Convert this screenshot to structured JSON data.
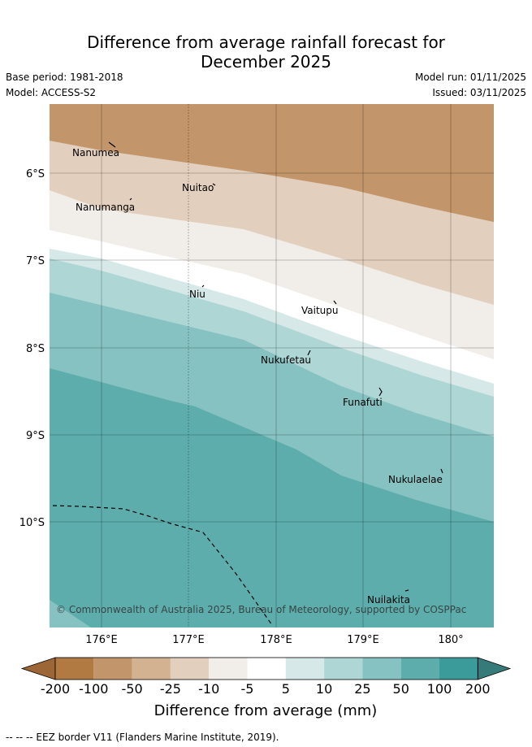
{
  "header": {
    "title_line1": "Difference from average rainfall forecast for",
    "title_line2": "December 2025",
    "base_period": "Base period: 1981-2018",
    "model": "Model: ACCESS-S2",
    "model_run": "Model run: 01/11/2025",
    "issued": "Issued: 03/11/2025"
  },
  "map": {
    "lon_ticks": [
      "176°E",
      "177°E",
      "178°E",
      "179°E",
      "180°"
    ],
    "lat_ticks": [
      "6°S",
      "7°S",
      "8°S",
      "9°S",
      "10°S"
    ],
    "places": [
      {
        "name": "Nanumea"
      },
      {
        "name": "Nuitao"
      },
      {
        "name": "Nanumanga"
      },
      {
        "name": "Niu"
      },
      {
        "name": "Vaitupu"
      },
      {
        "name": "Nukufetau"
      },
      {
        "name": "Funafuti"
      },
      {
        "name": "Nukulaelae"
      },
      {
        "name": "Nuilakita"
      }
    ],
    "copyright": "© Commonwealth of Australia 2025, Bureau of Meteorology, supported by COSPPac"
  },
  "colorbar": {
    "title": "Difference from average (mm)",
    "tick_labels": [
      "-200",
      "-100",
      "-50",
      "-25",
      "-10",
      "-5",
      "5",
      "10",
      "25",
      "50",
      "100",
      "200"
    ],
    "colors": [
      "#9c6636",
      "#b07a42",
      "#c2956a",
      "#d3b291",
      "#e3cfbd",
      "#f1ede8",
      "#ffffff",
      "#d6e9e8",
      "#aed6d5",
      "#86c2c1",
      "#5cadac",
      "#3a9b9a",
      "#367b7a"
    ]
  },
  "footnote": "-- -- -- EEZ border V11 (Flanders Marine Institute, 2019)."
}
